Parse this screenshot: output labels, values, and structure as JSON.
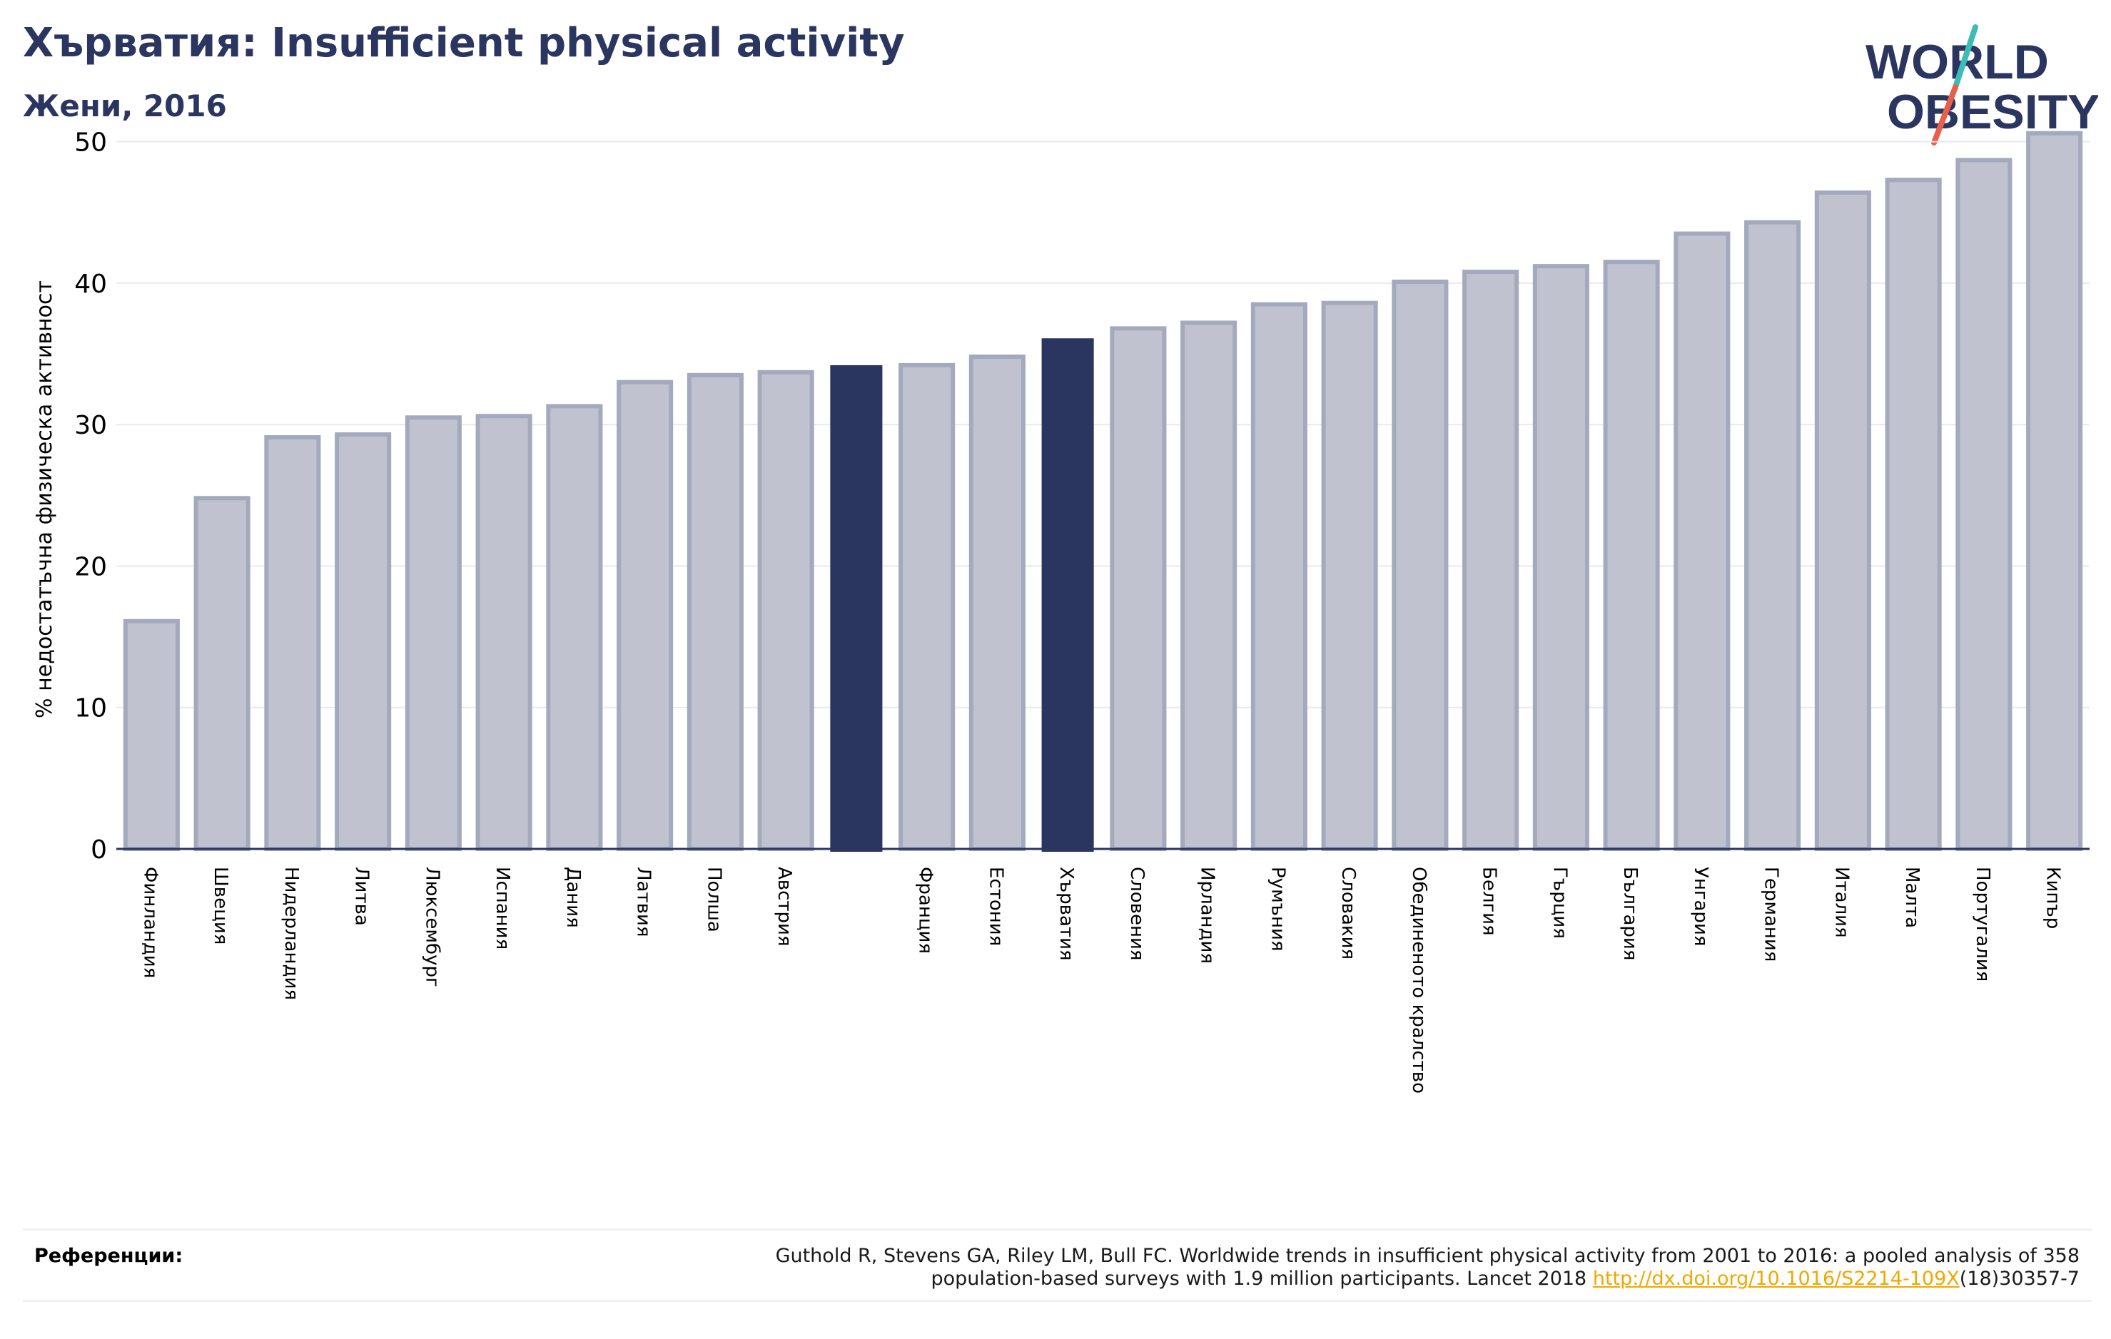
{
  "header": {
    "title": "Хърватия: Insufficient physical activity",
    "subtitle": "Жени, 2016"
  },
  "logo": {
    "line1": "WORLD",
    "line2": "OBESITY",
    "text_color": "#2a3560",
    "slash_top_color": "#3cbcb4",
    "slash_bottom_color": "#e8604c"
  },
  "colors": {
    "bar": "#c0c3cf",
    "bar_border": "#a4a9bd",
    "highlight": "#2a3560",
    "grid": "#e8e9ee",
    "axis": "#2a3560"
  },
  "chart_data": {
    "type": "bar",
    "ylabel": "% недостатъчна физическа активност",
    "ylim": [
      0,
      52
    ],
    "yticks": [
      0,
      10,
      20,
      30,
      40,
      50
    ],
    "grid": true,
    "categories": [
      "Финландия",
      "Швеция",
      "Нидерландия",
      "Литва",
      "Люксембург",
      "Испания",
      "Дания",
      "Латвия",
      "Полша",
      "Австрия",
      "",
      "Франция",
      "Естония",
      "Хърватия",
      "Словения",
      "Ирландия",
      "Румъния",
      "Словакия",
      "Обединеното кралство",
      "Белгия",
      "Гърция",
      "България",
      "Унгария",
      "Германия",
      "Италия",
      "Малта",
      "Португалия",
      "Кипър"
    ],
    "values": [
      16.1,
      24.8,
      29.1,
      29.3,
      30.5,
      30.6,
      31.3,
      33.0,
      33.5,
      33.7,
      34.2,
      34.2,
      34.8,
      36.1,
      36.8,
      37.2,
      38.5,
      38.6,
      40.1,
      40.8,
      41.2,
      41.5,
      43.5,
      44.3,
      46.4,
      47.3,
      48.7,
      50.6
    ],
    "highlight": [
      10,
      13
    ]
  },
  "references": {
    "label": "Референции:",
    "line1": "Guthold R, Stevens GA, Riley LM, Bull FC. Worldwide trends in insufficient physical activity from 2001 to 2016: a pooled analysis of 358",
    "line2_before": "population-based surveys with 1.9 million participants. Lancet 2018 ",
    "link": "http://dx.doi.org/10.1016/S2214-109X",
    "line2_after": "(18)30357-7"
  }
}
